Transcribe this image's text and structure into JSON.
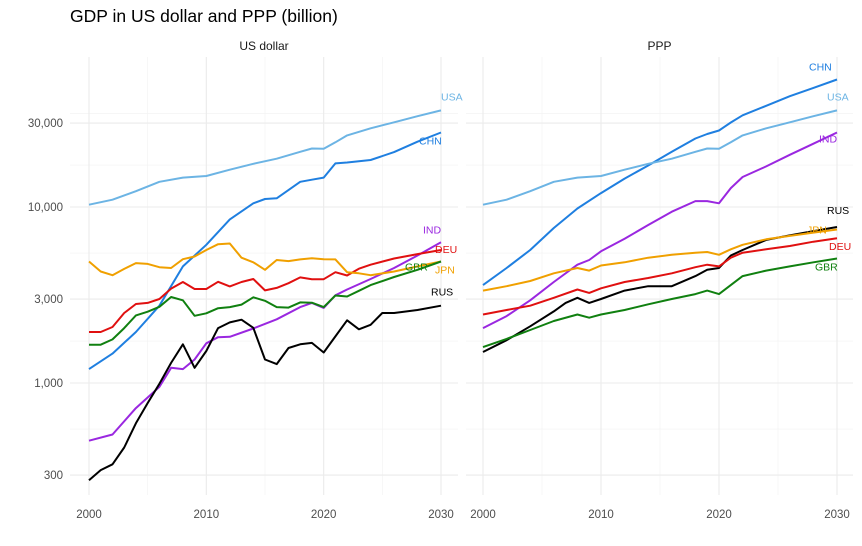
{
  "title": "GDP in US dollar and PPP (billion)",
  "chart_data": [
    {
      "type": "line",
      "panel": "US dollar",
      "title": "US dollar",
      "xlabel": "",
      "ylabel": "",
      "xlim": [
        2000,
        2030
      ],
      "ylim": [
        250,
        50000
      ],
      "yscale": "log",
      "x_ticks": [
        2000,
        2010,
        2020,
        2030
      ],
      "x_tick_labels": [
        "2000",
        "2010",
        "2020",
        "2030"
      ],
      "y_ticks": [
        300,
        1000,
        3000,
        10000,
        30000
      ],
      "y_tick_labels": [
        "300",
        "1,000",
        "3,000",
        "10,000",
        "30,000"
      ],
      "grid": true,
      "series": [
        {
          "name": "USA",
          "color": "#6cb4e4",
          "x": [
            2000,
            2002,
            2004,
            2006,
            2008,
            2010,
            2012,
            2014,
            2016,
            2018,
            2019,
            2020,
            2021,
            2022,
            2024,
            2026,
            2028,
            2030
          ],
          "values": [
            10300,
            11000,
            12300,
            13900,
            14700,
            15000,
            16300,
            17600,
            18800,
            20600,
            21500,
            21400,
            23300,
            25500,
            28000,
            30300,
            32800,
            35400
          ]
        },
        {
          "name": "CHN",
          "color": "#1f7fe0",
          "x": [
            2000,
            2002,
            2004,
            2006,
            2008,
            2010,
            2012,
            2014,
            2015,
            2016,
            2018,
            2019,
            2020,
            2021,
            2022,
            2024,
            2026,
            2028,
            2030
          ],
          "values": [
            1200,
            1470,
            1950,
            2750,
            4600,
            6100,
            8500,
            10500,
            11100,
            11200,
            13900,
            14300,
            14700,
            17700,
            17900,
            18500,
            20500,
            23500,
            26500
          ]
        },
        {
          "name": "IND",
          "color": "#9a27e0",
          "x": [
            2000,
            2002,
            2004,
            2006,
            2007,
            2008,
            2009,
            2010,
            2011,
            2012,
            2014,
            2016,
            2018,
            2019,
            2020,
            2021,
            2022,
            2024,
            2026,
            2028,
            2030
          ],
          "values": [
            470,
            510,
            720,
            950,
            1220,
            1200,
            1360,
            1680,
            1820,
            1830,
            2040,
            2300,
            2700,
            2850,
            2670,
            3150,
            3400,
            3900,
            4500,
            5300,
            6300
          ]
        },
        {
          "name": "DEU",
          "color": "#e01010",
          "x": [
            2000,
            2001,
            2002,
            2003,
            2004,
            2005,
            2006,
            2007,
            2008,
            2009,
            2010,
            2011,
            2012,
            2013,
            2014,
            2015,
            2016,
            2017,
            2018,
            2019,
            2020,
            2021,
            2022,
            2023,
            2024,
            2026,
            2028,
            2030
          ],
          "values": [
            1950,
            1950,
            2080,
            2500,
            2810,
            2850,
            3000,
            3440,
            3750,
            3420,
            3420,
            3760,
            3540,
            3750,
            3900,
            3360,
            3470,
            3690,
            3980,
            3890,
            3890,
            4260,
            4080,
            4460,
            4700,
            5100,
            5400,
            5700
          ]
        },
        {
          "name": "JPN",
          "color": "#f0a000",
          "x": [
            2000,
            2001,
            2002,
            2003,
            2004,
            2005,
            2006,
            2007,
            2008,
            2009,
            2010,
            2011,
            2012,
            2013,
            2014,
            2015,
            2016,
            2017,
            2018,
            2019,
            2020,
            2021,
            2022,
            2023,
            2024,
            2026,
            2028,
            2030
          ],
          "values": [
            4900,
            4300,
            4100,
            4450,
            4800,
            4750,
            4550,
            4500,
            5050,
            5230,
            5700,
            6150,
            6200,
            5150,
            4850,
            4400,
            5000,
            4930,
            5040,
            5120,
            5050,
            5040,
            4260,
            4200,
            4100,
            4300,
            4600,
            4900
          ]
        },
        {
          "name": "GBR",
          "color": "#108010",
          "x": [
            2000,
            2001,
            2002,
            2003,
            2004,
            2005,
            2006,
            2007,
            2008,
            2009,
            2010,
            2011,
            2012,
            2013,
            2014,
            2015,
            2016,
            2017,
            2018,
            2019,
            2020,
            2021,
            2022,
            2023,
            2024,
            2026,
            2028,
            2030
          ],
          "values": [
            1650,
            1650,
            1770,
            2050,
            2420,
            2540,
            2710,
            3080,
            2950,
            2410,
            2490,
            2660,
            2700,
            2790,
            3070,
            2930,
            2700,
            2680,
            2870,
            2860,
            2700,
            3140,
            3100,
            3340,
            3600,
            4000,
            4400,
            4900
          ]
        },
        {
          "name": "RUS",
          "color": "#000000",
          "x": [
            2000,
            2001,
            2002,
            2003,
            2004,
            2005,
            2006,
            2007,
            2008,
            2009,
            2010,
            2011,
            2012,
            2013,
            2014,
            2015,
            2016,
            2017,
            2018,
            2019,
            2020,
            2021,
            2022,
            2023,
            2024,
            2025,
            2026,
            2028,
            2030
          ],
          "values": [
            280,
            320,
            345,
            430,
            590,
            770,
            990,
            1300,
            1660,
            1220,
            1520,
            2050,
            2210,
            2290,
            2060,
            1360,
            1280,
            1580,
            1660,
            1690,
            1490,
            1840,
            2270,
            2020,
            2140,
            2500,
            2500,
            2600,
            2750
          ]
        }
      ]
    },
    {
      "type": "line",
      "panel": "PPP",
      "title": "PPP",
      "xlabel": "",
      "ylabel": "",
      "xlim": [
        2000,
        2030
      ],
      "ylim": [
        250,
        50000
      ],
      "yscale": "log",
      "x_ticks": [
        2000,
        2010,
        2020,
        2030
      ],
      "x_tick_labels": [
        "2000",
        "2010",
        "2020",
        "2030"
      ],
      "y_ticks": [
        300,
        1000,
        3000,
        10000,
        30000
      ],
      "grid": true,
      "series": [
        {
          "name": "CHN",
          "color": "#1f7fe0",
          "x": [
            2000,
            2002,
            2004,
            2006,
            2008,
            2010,
            2012,
            2014,
            2016,
            2018,
            2019,
            2020,
            2021,
            2022,
            2024,
            2026,
            2028,
            2030
          ],
          "values": [
            3600,
            4500,
            5700,
            7600,
            9800,
            12000,
            14500,
            17200,
            20600,
            24500,
            26000,
            27200,
            30200,
            33200,
            37600,
            42600,
            47500,
            53000
          ]
        },
        {
          "name": "USA",
          "color": "#6cb4e4",
          "x": [
            2000,
            2002,
            2004,
            2006,
            2008,
            2010,
            2012,
            2014,
            2016,
            2018,
            2019,
            2020,
            2021,
            2022,
            2024,
            2026,
            2028,
            2030
          ],
          "values": [
            10300,
            11000,
            12300,
            13900,
            14700,
            15000,
            16300,
            17600,
            18800,
            20600,
            21500,
            21400,
            23300,
            25500,
            28000,
            30300,
            32800,
            35400
          ]
        },
        {
          "name": "IND",
          "color": "#9a27e0",
          "x": [
            2000,
            2002,
            2004,
            2006,
            2008,
            2009,
            2010,
            2012,
            2014,
            2016,
            2018,
            2019,
            2020,
            2021,
            2022,
            2024,
            2026,
            2028,
            2030
          ],
          "values": [
            2050,
            2400,
            2950,
            3750,
            4700,
            5000,
            5600,
            6600,
            7900,
            9400,
            10800,
            10800,
            10500,
            12800,
            14800,
            17000,
            19800,
            22900,
            26500
          ]
        },
        {
          "name": "RUS",
          "color": "#000000",
          "x": [
            2000,
            2002,
            2004,
            2006,
            2007,
            2008,
            2009,
            2010,
            2012,
            2014,
            2016,
            2018,
            2019,
            2020,
            2021,
            2022,
            2024,
            2026,
            2028,
            2030
          ],
          "values": [
            1500,
            1750,
            2100,
            2550,
            2850,
            3050,
            2850,
            3000,
            3350,
            3550,
            3550,
            4050,
            4400,
            4500,
            5300,
            5700,
            6500,
            6900,
            7300,
            7700
          ]
        },
        {
          "name": "JPN",
          "color": "#f0a000",
          "x": [
            2000,
            2002,
            2004,
            2006,
            2008,
            2009,
            2010,
            2012,
            2014,
            2016,
            2018,
            2019,
            2020,
            2021,
            2022,
            2024,
            2026,
            2028,
            2030
          ],
          "values": [
            3350,
            3550,
            3800,
            4200,
            4500,
            4350,
            4650,
            4850,
            5150,
            5350,
            5500,
            5550,
            5350,
            5750,
            6100,
            6550,
            6850,
            7150,
            7450
          ]
        },
        {
          "name": "DEU",
          "color": "#e01010",
          "x": [
            2000,
            2002,
            2004,
            2006,
            2008,
            2009,
            2010,
            2012,
            2014,
            2016,
            2018,
            2019,
            2020,
            2021,
            2022,
            2024,
            2026,
            2028,
            2030
          ],
          "values": [
            2450,
            2600,
            2750,
            3050,
            3400,
            3250,
            3450,
            3750,
            3950,
            4200,
            4550,
            4700,
            4600,
            5150,
            5500,
            5750,
            6000,
            6350,
            6650
          ]
        },
        {
          "name": "GBR",
          "color": "#108010",
          "x": [
            2000,
            2002,
            2004,
            2006,
            2008,
            2009,
            2010,
            2012,
            2014,
            2016,
            2018,
            2019,
            2020,
            2021,
            2022,
            2024,
            2026,
            2028,
            2030
          ],
          "values": [
            1600,
            1780,
            2000,
            2250,
            2450,
            2350,
            2450,
            2600,
            2800,
            3000,
            3200,
            3350,
            3200,
            3600,
            4050,
            4350,
            4600,
            4850,
            5100
          ]
        }
      ]
    }
  ]
}
